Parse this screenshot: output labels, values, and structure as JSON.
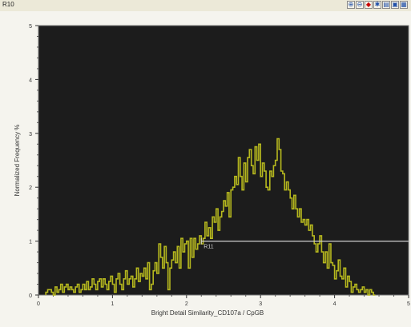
{
  "window": {
    "title": "R10"
  },
  "toolbar": {
    "buttons": [
      {
        "icon": "zoom-in-icon",
        "glyph": "⊕"
      },
      {
        "icon": "zoom-out-icon",
        "glyph": "⊖"
      },
      {
        "icon": "gate-icon",
        "glyph": "◆"
      },
      {
        "icon": "settings-icon",
        "glyph": "✱"
      },
      {
        "icon": "copy-icon",
        "glyph": "▤"
      },
      {
        "icon": "export-icon",
        "glyph": "▣"
      },
      {
        "icon": "print-icon",
        "glyph": "▦"
      }
    ]
  },
  "chart_data": {
    "type": "histogram",
    "title": "",
    "xlabel": "Bright Detail Similarity_CD107a / CpGB",
    "ylabel": "Normalized Frequency %",
    "xlim": [
      0,
      5
    ],
    "ylim": [
      0,
      5
    ],
    "xticks": [
      "0",
      "1",
      "2",
      "3",
      "4",
      "5"
    ],
    "yticks": [
      "0",
      "1",
      "2",
      "3",
      "4",
      "5"
    ],
    "background": "#1c1c1c",
    "line_color": "#b6b81e",
    "gate": {
      "label": "R11",
      "x_start": 2.2,
      "x_end": 5.0,
      "y": 1.0,
      "color": "#cfcfcf"
    },
    "bins": {
      "x_start": 0.1,
      "width": 0.025,
      "values": [
        0.05,
        0.1,
        0.1,
        0.05,
        0,
        0.15,
        0.05,
        0.1,
        0.2,
        0.05,
        0.15,
        0.2,
        0.1,
        0.15,
        0.1,
        0.05,
        0.15,
        0.2,
        0.05,
        0.1,
        0.2,
        0.1,
        0.25,
        0.1,
        0.15,
        0.3,
        0.2,
        0.1,
        0.25,
        0.3,
        0.15,
        0.3,
        0.2,
        0.1,
        0.25,
        0.35,
        0.2,
        0.05,
        0.3,
        0.4,
        0.2,
        0.1,
        0.3,
        0.45,
        0.2,
        0.3,
        0.35,
        0.15,
        0.3,
        0.5,
        0.25,
        0.4,
        0.35,
        0.5,
        0.3,
        0.6,
        0.1,
        0.2,
        0.45,
        0.6,
        0.4,
        0.95,
        0.7,
        0.5,
        0.9,
        0.6,
        0.1,
        0.5,
        0.65,
        0.8,
        0.6,
        0.9,
        0.5,
        1.05,
        0.8,
        0.95,
        1.0,
        0.5,
        1.05,
        0.7,
        1.05,
        0.85,
        0.95,
        1.1,
        0.95,
        1.05,
        1.35,
        1.1,
        1.25,
        1.05,
        1.45,
        1.35,
        1.6,
        1.2,
        1.45,
        1.55,
        1.75,
        1.65,
        1.9,
        1.45,
        1.95,
        2.0,
        2.2,
        2.05,
        2.55,
        2.2,
        1.95,
        2.45,
        2.1,
        2.55,
        2.7,
        2.4,
        2.25,
        2.75,
        2.5,
        2.8,
        2.2,
        2.45,
        2.3,
        2.0,
        1.95,
        2.3,
        2.2,
        2.4,
        2.5,
        2.9,
        2.7,
        2.3,
        2.25,
        1.95,
        2.1,
        1.95,
        1.8,
        1.6,
        1.85,
        1.6,
        1.45,
        1.6,
        1.35,
        1.4,
        1.3,
        1.4,
        1.2,
        1.3,
        1.1,
        0.95,
        0.8,
        0.95,
        1.1,
        0.8,
        0.6,
        0.8,
        0.5,
        0.95,
        0.6,
        0.55,
        0.3,
        0.45,
        0.65,
        0.35,
        0.3,
        0.5,
        0.15,
        0.35,
        0.25,
        0.05,
        0.15,
        0.2,
        0.1,
        0.05,
        0.1,
        0.15,
        0.05,
        0.1,
        0.0,
        0.1,
        0.05,
        0.0
      ]
    }
  }
}
